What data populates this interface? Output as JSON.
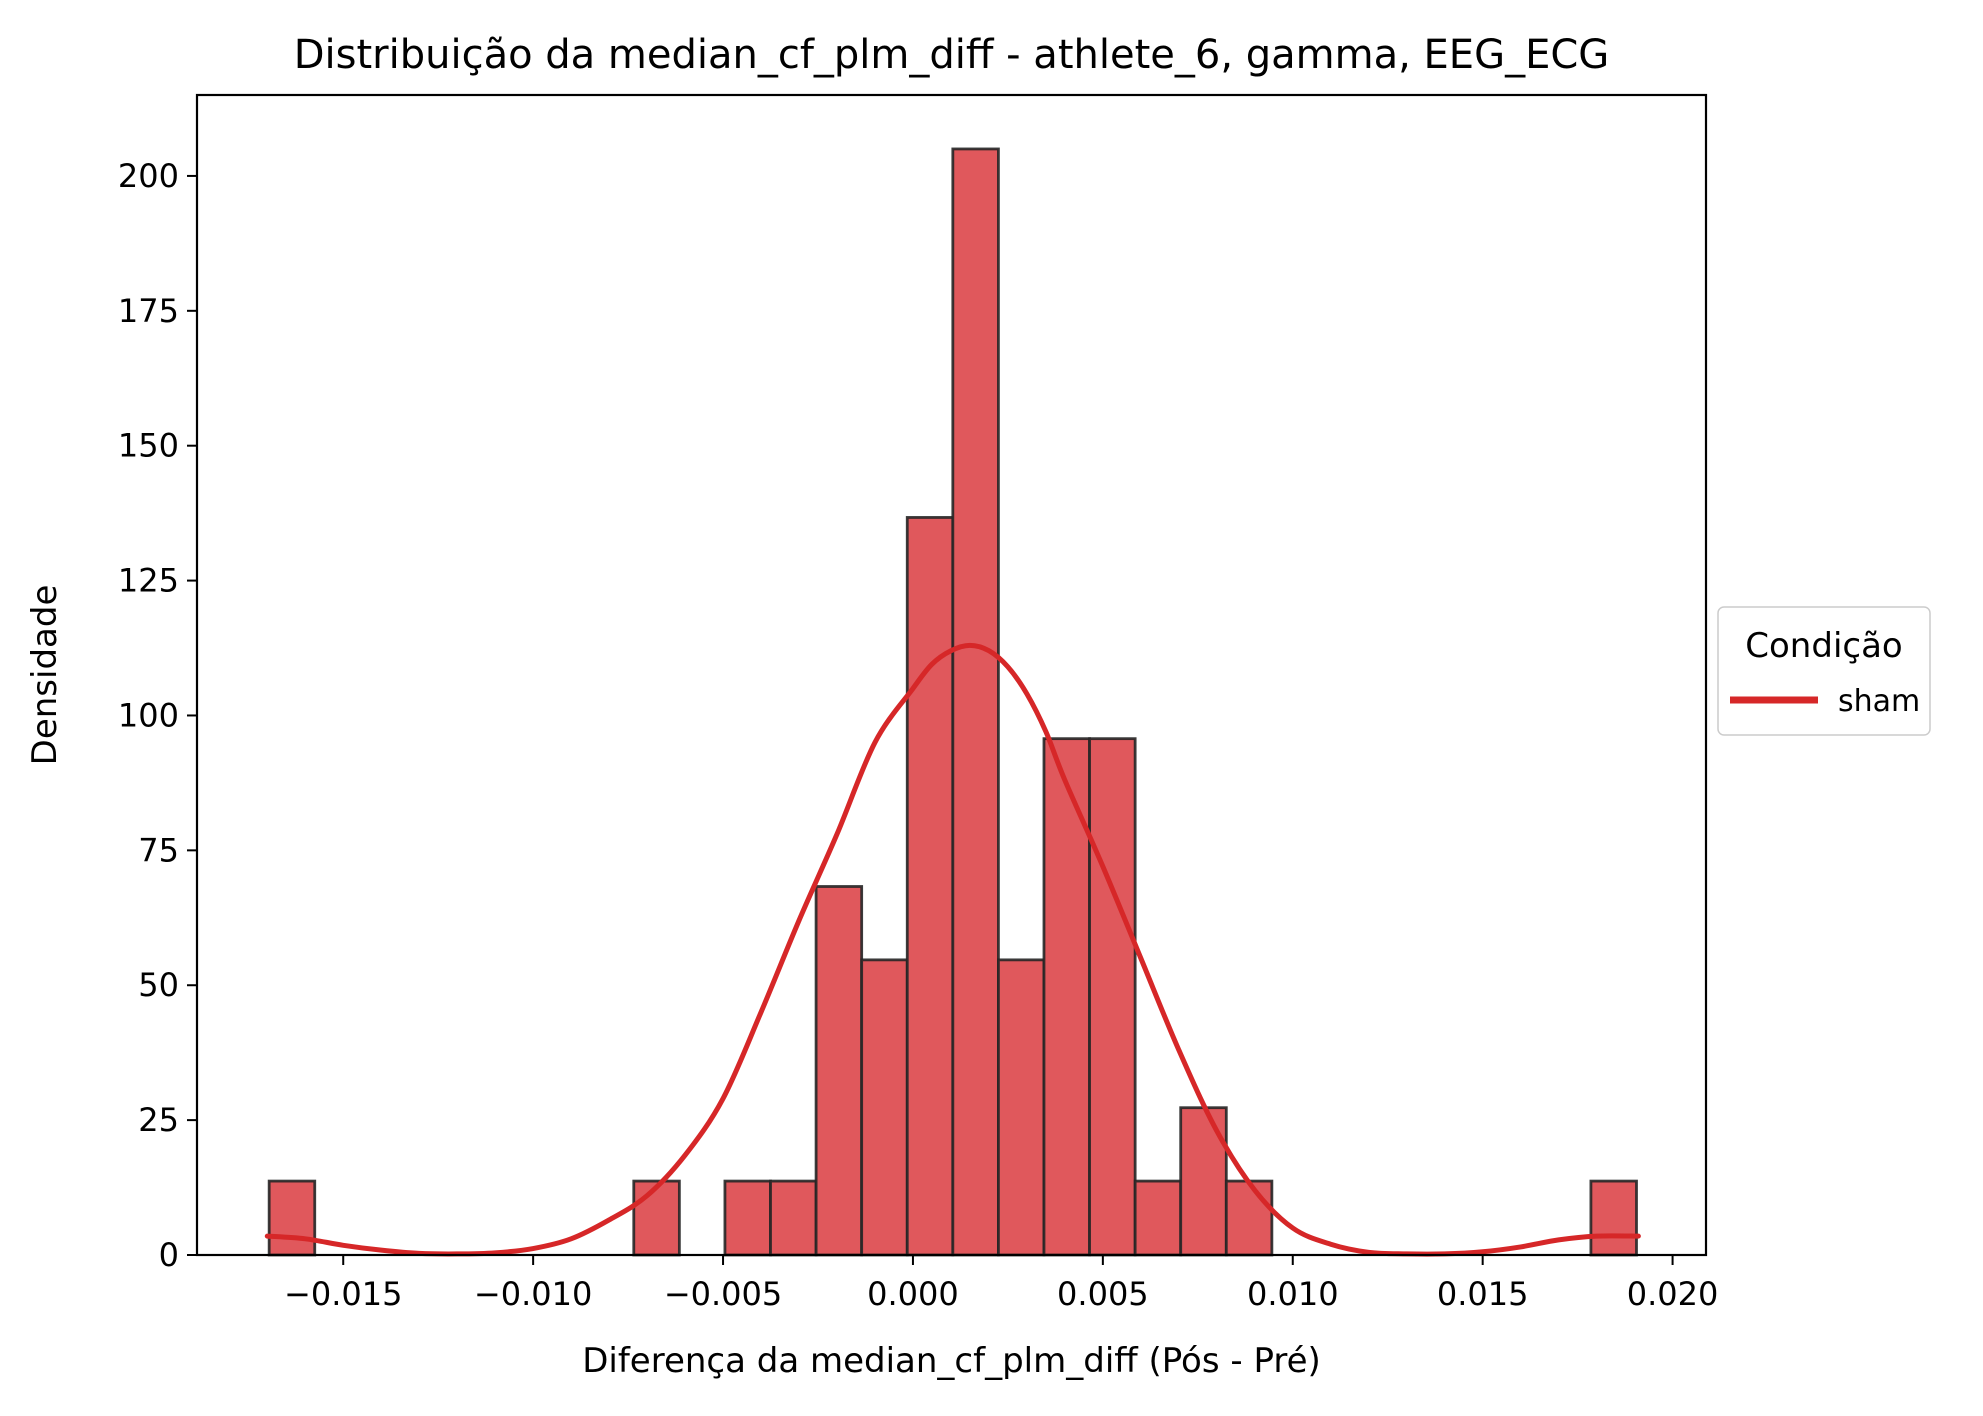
{
  "chart_data": {
    "type": "bar",
    "subtype": "histogram_with_kde",
    "title": "Distribuição da median_cf_plm_diff - athlete_6, gamma, EEG_ECG",
    "xlabel": "Diferença da median_cf_plm_diff (Pós - Pré)",
    "ylabel": "Densidade",
    "xlim": [
      -0.01885,
      0.02088
    ],
    "ylim": [
      0,
      215
    ],
    "x_ticks": [
      -0.015,
      -0.01,
      -0.005,
      0.0,
      0.005,
      0.01,
      0.015,
      0.02
    ],
    "x_tick_labels": [
      "−0.015",
      "−0.010",
      "−0.005",
      "0.000",
      "0.005",
      "0.010",
      "0.015",
      "0.020"
    ],
    "y_ticks": [
      0,
      25,
      50,
      75,
      100,
      125,
      150,
      175,
      200
    ],
    "y_tick_labels": [
      "0",
      "25",
      "50",
      "75",
      "100",
      "125",
      "150",
      "175",
      "200"
    ],
    "grid": false,
    "bar_color": "#E0585C",
    "bar_edge_color": "#262626",
    "line_color": "#D62728",
    "bins": [
      {
        "x0": -0.01695,
        "x1": -0.01575,
        "density": 13.7
      },
      {
        "x0": -0.00735,
        "x1": -0.00615,
        "density": 13.7
      },
      {
        "x0": -0.00495,
        "x1": -0.00375,
        "density": 13.7
      },
      {
        "x0": -0.00375,
        "x1": -0.00255,
        "density": 13.7
      },
      {
        "x0": -0.00255,
        "x1": -0.00135,
        "density": 68.3
      },
      {
        "x0": -0.00135,
        "x1": -0.00015,
        "density": 54.7
      },
      {
        "x0": -0.00015,
        "x1": 0.00105,
        "density": 136.7
      },
      {
        "x0": 0.00105,
        "x1": 0.00225,
        "density": 205.0
      },
      {
        "x0": 0.00225,
        "x1": 0.00345,
        "density": 54.7
      },
      {
        "x0": 0.00345,
        "x1": 0.00465,
        "density": 95.7
      },
      {
        "x0": 0.00465,
        "x1": 0.00585,
        "density": 95.7
      },
      {
        "x0": 0.00585,
        "x1": 0.00705,
        "density": 13.7
      },
      {
        "x0": 0.00705,
        "x1": 0.00825,
        "density": 27.3
      },
      {
        "x0": 0.00825,
        "x1": 0.00945,
        "density": 13.7
      },
      {
        "x0": 0.01785,
        "x1": 0.01905,
        "density": 13.7
      }
    ],
    "series": [
      {
        "name": "sham",
        "kind": "kde",
        "x": [
          -0.017,
          -0.016,
          -0.015,
          -0.014,
          -0.013,
          -0.012,
          -0.011,
          -0.01,
          -0.009,
          -0.008,
          -0.007,
          -0.006,
          -0.005,
          -0.004,
          -0.003,
          -0.002,
          -0.001,
          0.0,
          0.0005,
          0.001,
          0.0015,
          0.002,
          0.0025,
          0.003,
          0.0035,
          0.004,
          0.005,
          0.006,
          0.007,
          0.008,
          0.009,
          0.01,
          0.011,
          0.012,
          0.013,
          0.014,
          0.015,
          0.016,
          0.017,
          0.018,
          0.0191
        ],
        "y": [
          3.5,
          3.0,
          1.8,
          0.9,
          0.3,
          0.2,
          0.4,
          1.2,
          3.0,
          6.5,
          11.0,
          18.5,
          29.0,
          45.0,
          62.0,
          78.0,
          95.0,
          105.0,
          109.5,
          112.0,
          113.0,
          112.0,
          109.0,
          104.0,
          97.0,
          88.0,
          72.0,
          55.0,
          38.0,
          23.0,
          12.0,
          5.0,
          2.0,
          0.5,
          0.2,
          0.2,
          0.6,
          1.5,
          2.8,
          3.5,
          3.5
        ]
      }
    ],
    "legend": {
      "title": "Condição",
      "entries": [
        "sham"
      ],
      "placement": "right-center outside"
    }
  }
}
